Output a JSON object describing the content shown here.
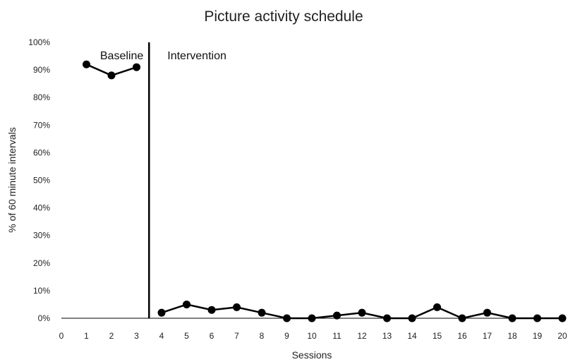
{
  "chart_data": {
    "type": "line",
    "title": "Picture activity schedule",
    "xlabel": "Sessions",
    "ylabel": "% of 60 minute intervals",
    "xlim": [
      0,
      20
    ],
    "ylim": [
      0,
      100
    ],
    "x_ticks": [
      "0",
      "1",
      "2",
      "3",
      "4",
      "5",
      "6",
      "7",
      "8",
      "9",
      "10",
      "11",
      "12",
      "13",
      "14",
      "15",
      "16",
      "17",
      "18",
      "19",
      "20"
    ],
    "y_ticks": [
      "0%",
      "10%",
      "20%",
      "30%",
      "40%",
      "50%",
      "60%",
      "70%",
      "80%",
      "90%",
      "100%"
    ],
    "grid": false,
    "legend": "none",
    "phase_line_x": 3.5,
    "phases": [
      {
        "label": "Baseline",
        "x": [
          1,
          2,
          3
        ],
        "y": [
          92,
          88,
          91
        ]
      },
      {
        "label": "Intervention",
        "x": [
          4,
          5,
          6,
          7,
          8,
          9,
          10,
          11,
          12,
          13,
          14,
          15,
          16,
          17,
          18,
          19,
          20
        ],
        "y": [
          2,
          5,
          3,
          4,
          2,
          0,
          0,
          1,
          2,
          0,
          0,
          4,
          0,
          2,
          0,
          0,
          0
        ]
      }
    ],
    "colors": {
      "line": "#000000",
      "marker": "#000000",
      "axis": "#000000"
    }
  }
}
